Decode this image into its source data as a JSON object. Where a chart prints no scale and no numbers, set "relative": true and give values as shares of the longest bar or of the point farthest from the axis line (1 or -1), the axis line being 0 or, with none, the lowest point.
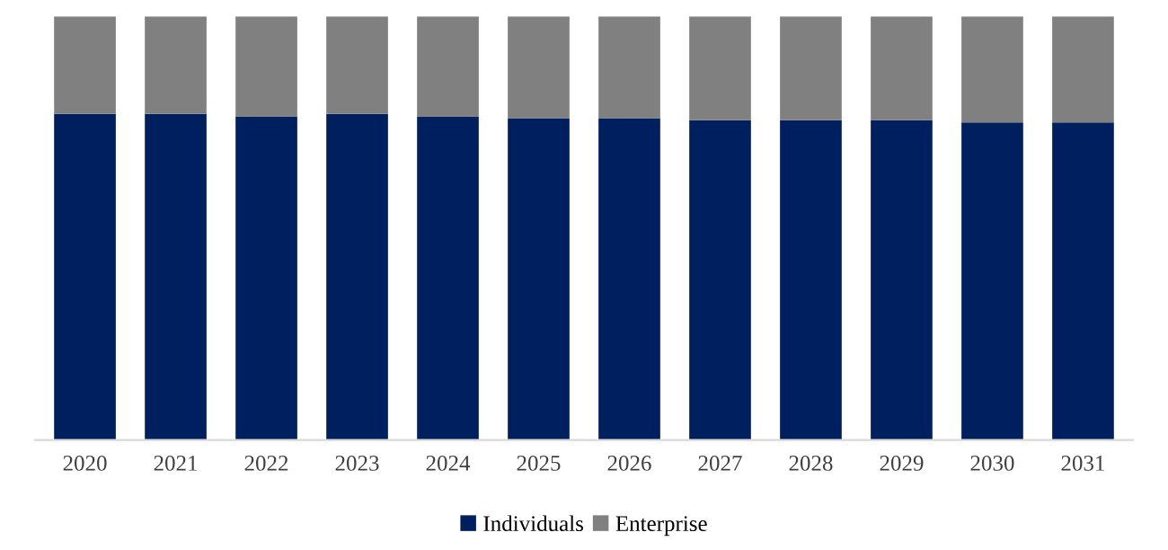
{
  "chart_data": {
    "type": "bar",
    "stacked": true,
    "relative": true,
    "legend": "bottom",
    "grid": false,
    "categories": [
      "2020",
      "2021",
      "2022",
      "2023",
      "2024",
      "2025",
      "2026",
      "2027",
      "2028",
      "2029",
      "2030",
      "2031"
    ],
    "series": [
      {
        "name": "Individuals",
        "color": "#001f5f",
        "values": [
          0.77,
          0.77,
          0.764,
          0.77,
          0.764,
          0.76,
          0.76,
          0.755,
          0.755,
          0.755,
          0.75,
          0.75
        ]
      },
      {
        "name": "Enterprise",
        "color": "#808080",
        "values": [
          0.23,
          0.23,
          0.236,
          0.23,
          0.236,
          0.24,
          0.24,
          0.245,
          0.245,
          0.245,
          0.25,
          0.25
        ]
      }
    ]
  }
}
